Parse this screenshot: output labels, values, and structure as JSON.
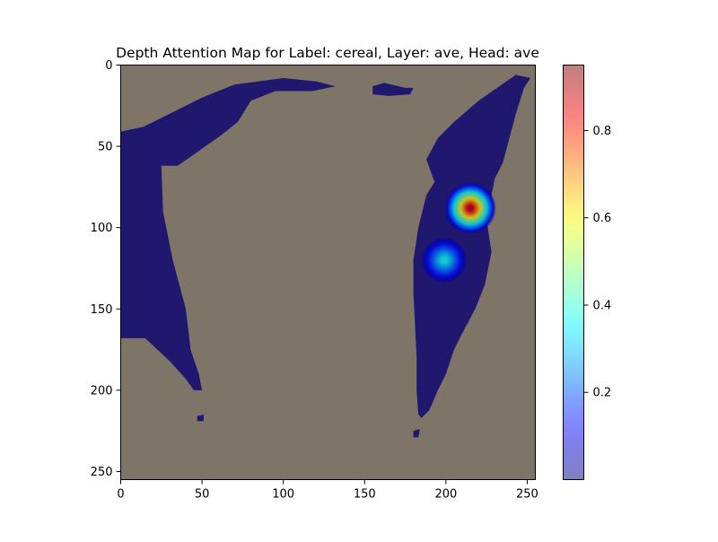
{
  "chart_data": {
    "type": "heatmap",
    "title": "Depth Attention Map for Label: cereal, Layer: ave, Head: ave",
    "xlabel": "",
    "ylabel": "",
    "xlim": [
      0,
      255
    ],
    "ylim": [
      255,
      0
    ],
    "x_ticks": [
      0,
      50,
      100,
      150,
      200,
      250
    ],
    "y_ticks": [
      0,
      50,
      100,
      150,
      200,
      250
    ],
    "x_tick_labels": [
      "0",
      "50",
      "100",
      "150",
      "200",
      "250"
    ],
    "y_tick_labels": [
      "0",
      "50",
      "100",
      "150",
      "200",
      "250"
    ],
    "colormap": "jet",
    "overlay_alpha": 0.5,
    "colorbar": {
      "range": [
        0.0,
        0.95
      ],
      "ticks": [
        0.2,
        0.4,
        0.6,
        0.8
      ],
      "tick_labels": [
        "0.2",
        "0.4",
        "0.6",
        "0.8"
      ]
    },
    "background_depth_color": "#fffbc9",
    "regions_low_attention": [
      {
        "polygon": [
          [
            0,
            41
          ],
          [
            14,
            38
          ],
          [
            30,
            30
          ],
          [
            50,
            20
          ],
          [
            70,
            12
          ],
          [
            100,
            8
          ],
          [
            120,
            10
          ],
          [
            132,
            13
          ],
          [
            118,
            16
          ],
          [
            95,
            16
          ],
          [
            80,
            22
          ],
          [
            72,
            35
          ],
          [
            62,
            43
          ],
          [
            45,
            55
          ],
          [
            35,
            62
          ],
          [
            25,
            62
          ],
          [
            26,
            90
          ],
          [
            32,
            120
          ],
          [
            40,
            150
          ],
          [
            43,
            175
          ],
          [
            48,
            190
          ],
          [
            50,
            200
          ],
          [
            45,
            200
          ],
          [
            40,
            193
          ],
          [
            30,
            182
          ],
          [
            15,
            168
          ],
          [
            0,
            168
          ]
        ]
      },
      {
        "polygon": [
          [
            155,
            13
          ],
          [
            162,
            11
          ],
          [
            175,
            14
          ],
          [
            180,
            14
          ],
          [
            178,
            18
          ],
          [
            165,
            19
          ],
          [
            155,
            18
          ]
        ]
      },
      {
        "polygon": [
          [
            243,
            6
          ],
          [
            252,
            8
          ],
          [
            248,
            14
          ],
          [
            243,
            30
          ],
          [
            235,
            60
          ],
          [
            230,
            70
          ],
          [
            225,
            95
          ],
          [
            228,
            115
          ],
          [
            224,
            135
          ],
          [
            218,
            150
          ],
          [
            210,
            165
          ],
          [
            205,
            175
          ],
          [
            200,
            190
          ],
          [
            195,
            200
          ],
          [
            190,
            212
          ],
          [
            185,
            217
          ],
          [
            183,
            215
          ],
          [
            182,
            200
          ],
          [
            182,
            180
          ],
          [
            181,
            160
          ],
          [
            180,
            140
          ],
          [
            180,
            120
          ],
          [
            183,
            100
          ],
          [
            188,
            80
          ],
          [
            193,
            72
          ],
          [
            188,
            58
          ],
          [
            195,
            45
          ],
          [
            205,
            35
          ],
          [
            220,
            22
          ],
          [
            230,
            15
          ]
        ]
      },
      {
        "polygon": [
          [
            180,
            225
          ],
          [
            184,
            224
          ],
          [
            183,
            229
          ],
          [
            180,
            229
          ]
        ]
      },
      {
        "polygon": [
          [
            47,
            216
          ],
          [
            51,
            215
          ],
          [
            51,
            219
          ],
          [
            47,
            219
          ]
        ]
      }
    ],
    "hotspots": [
      {
        "x": 215,
        "y": 88,
        "value": 0.95,
        "radius": 16
      },
      {
        "x": 199,
        "y": 120,
        "value": 0.42,
        "radius": 14
      }
    ]
  }
}
